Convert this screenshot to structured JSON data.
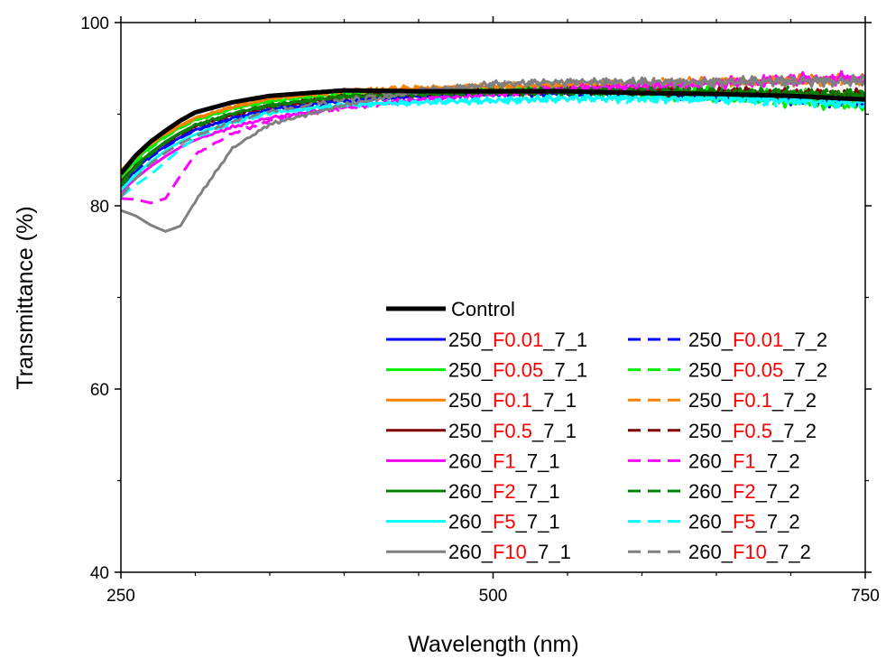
{
  "chart_data": {
    "type": "line",
    "title": "",
    "xlabel": "Wavelength (nm)",
    "ylabel": "Transmittance (%)",
    "xlim": [
      250,
      750
    ],
    "ylim": [
      40,
      100
    ],
    "x_ticks": [
      "250",
      "500",
      "750"
    ],
    "y_ticks": [
      "40",
      "60",
      "80",
      "100"
    ],
    "grid": false,
    "legend_position": "bottom-right",
    "x": [
      250,
      260,
      270,
      280,
      290,
      300,
      325,
      350,
      400,
      450,
      500,
      550,
      600,
      650,
      700,
      750
    ],
    "series": [
      {
        "name": "Control",
        "parts": [
          "Control"
        ],
        "color": "#000000",
        "dash": "solid",
        "width": 5,
        "values": [
          83.5,
          85.5,
          87.0,
          88.2,
          89.3,
          90.2,
          91.3,
          92.0,
          92.6,
          92.5,
          92.5,
          92.5,
          92.3,
          92.2,
          92.0,
          91.6
        ]
      },
      {
        "name": "250_F0.01_7_1",
        "parts": [
          "250_",
          "F0.01",
          "_7_1"
        ],
        "color": "#0000ff",
        "dash": "solid",
        "width": 3,
        "values": [
          82.0,
          84.0,
          85.5,
          86.5,
          87.5,
          88.3,
          89.6,
          90.5,
          91.5,
          92.0,
          92.2,
          92.3,
          92.2,
          92.0,
          91.6,
          91.2
        ]
      },
      {
        "name": "250_F0.01_7_2",
        "parts": [
          "250_",
          "F0.01",
          "_7_2"
        ],
        "color": "#0000ff",
        "dash": "dash",
        "width": 3,
        "values": [
          81.8,
          83.7,
          85.3,
          86.4,
          87.4,
          88.2,
          89.5,
          90.4,
          91.5,
          92.0,
          92.3,
          92.5,
          92.4,
          92.1,
          91.7,
          91.3
        ]
      },
      {
        "name": "250_F0.05_7_1",
        "parts": [
          "250_",
          "F0.05",
          "_7_1"
        ],
        "color": "#00ee00",
        "dash": "solid",
        "width": 3,
        "values": [
          83.0,
          85.0,
          86.5,
          87.6,
          88.6,
          89.4,
          90.6,
          91.4,
          92.2,
          92.5,
          92.7,
          92.8,
          92.7,
          92.5,
          92.2,
          91.8
        ]
      },
      {
        "name": "250_F0.05_7_2",
        "parts": [
          "250_",
          "F0.05",
          "_7_2"
        ],
        "color": "#00ee00",
        "dash": "dash",
        "width": 3,
        "values": [
          82.7,
          84.7,
          86.3,
          87.5,
          88.5,
          89.3,
          90.6,
          91.5,
          92.3,
          92.5,
          92.6,
          92.4,
          92.1,
          91.8,
          91.3,
          90.8
        ]
      },
      {
        "name": "250_F0.1_7_1",
        "parts": [
          "250_",
          "F0.1",
          "_7_1"
        ],
        "color": "#ff8000",
        "dash": "solid",
        "width": 3,
        "values": [
          83.8,
          85.6,
          86.9,
          87.9,
          88.8,
          89.6,
          90.8,
          91.7,
          92.5,
          92.8,
          93.0,
          93.2,
          93.3,
          93.5,
          93.6,
          93.7
        ]
      },
      {
        "name": "250_F0.1_7_2",
        "parts": [
          "250_",
          "F0.1",
          "_7_2"
        ],
        "color": "#ff8000",
        "dash": "dash",
        "width": 3,
        "values": [
          83.5,
          85.3,
          86.7,
          87.8,
          88.7,
          89.5,
          90.8,
          91.7,
          92.6,
          92.9,
          93.1,
          93.3,
          93.4,
          93.6,
          93.7,
          93.9
        ]
      },
      {
        "name": "250_F0.5_7_1",
        "parts": [
          "250_",
          "F0.5",
          "_7_1"
        ],
        "color": "#800000",
        "dash": "solid",
        "width": 3,
        "values": [
          82.6,
          84.4,
          85.8,
          86.9,
          87.9,
          88.7,
          90.0,
          90.9,
          91.9,
          92.3,
          92.5,
          92.5,
          92.5,
          92.4,
          92.2,
          92.0
        ]
      },
      {
        "name": "250_F0.5_7_2",
        "parts": [
          "250_",
          "F0.5",
          "_7_2"
        ],
        "color": "#800000",
        "dash": "dash",
        "width": 3,
        "values": [
          82.3,
          84.2,
          85.7,
          86.8,
          87.8,
          88.6,
          89.9,
          90.8,
          91.9,
          92.3,
          92.5,
          92.6,
          92.6,
          92.5,
          92.3,
          92.1
        ]
      },
      {
        "name": "260_F1_7_1",
        "parts": [
          "260_",
          "F1",
          "_7_1"
        ],
        "color": "#ff00ff",
        "dash": "solid",
        "width": 3,
        "values": [
          81.5,
          83.0,
          84.3,
          85.4,
          86.4,
          87.2,
          88.6,
          89.6,
          90.8,
          91.6,
          92.2,
          92.7,
          93.0,
          93.3,
          93.6,
          93.9
        ]
      },
      {
        "name": "260_F1_7_2",
        "parts": [
          "260_",
          "F1",
          "_7_2"
        ],
        "color": "#ff00ff",
        "dash": "dash",
        "width": 3,
        "values": [
          80.8,
          80.7,
          80.3,
          80.8,
          83.3,
          85.6,
          87.9,
          89.3,
          90.7,
          91.6,
          92.3,
          92.8,
          93.2,
          93.6,
          93.9,
          94.1
        ]
      },
      {
        "name": "260_F2_7_1",
        "parts": [
          "260_",
          "F2",
          "_7_1"
        ],
        "color": "#008000",
        "dash": "solid",
        "width": 3,
        "values": [
          82.4,
          84.3,
          85.8,
          87.0,
          88.0,
          88.8,
          90.1,
          91.0,
          91.9,
          92.2,
          92.4,
          92.4,
          92.4,
          92.3,
          92.2,
          92.0
        ]
      },
      {
        "name": "260_F2_7_2",
        "parts": [
          "260_",
          "F2",
          "_7_2"
        ],
        "color": "#008000",
        "dash": "dash",
        "width": 3,
        "values": [
          82.1,
          84.1,
          85.6,
          86.9,
          87.9,
          88.7,
          90.0,
          90.9,
          91.9,
          92.3,
          92.5,
          92.6,
          92.6,
          92.5,
          92.4,
          92.2
        ]
      },
      {
        "name": "260_F5_7_1",
        "parts": [
          "260_",
          "F5",
          "_7_1"
        ],
        "color": "#00ffff",
        "dash": "solid",
        "width": 3,
        "values": [
          81.7,
          83.4,
          84.8,
          86.0,
          87.0,
          87.8,
          89.2,
          90.2,
          91.0,
          91.3,
          91.5,
          91.7,
          91.7,
          91.7,
          91.5,
          91.2
        ]
      },
      {
        "name": "260_F5_7_2",
        "parts": [
          "260_",
          "F5",
          "_7_2"
        ],
        "color": "#00ffff",
        "dash": "dash",
        "width": 3,
        "values": [
          81.0,
          82.3,
          83.4,
          84.8,
          86.2,
          87.4,
          89.0,
          90.1,
          91.0,
          91.3,
          91.5,
          91.7,
          91.7,
          91.7,
          91.4,
          91.0
        ]
      },
      {
        "name": "260_F10_7_1",
        "parts": [
          "260_",
          "F10",
          "_7_1"
        ],
        "color": "#808080",
        "dash": "solid",
        "width": 3,
        "values": [
          79.5,
          78.9,
          77.9,
          77.2,
          77.8,
          80.5,
          86.3,
          88.9,
          91.0,
          92.5,
          93.3,
          93.5,
          93.5,
          93.5,
          93.6,
          93.6
        ]
      },
      {
        "name": "260_F10_7_2",
        "parts": [
          "260_",
          "F10",
          "_7_2"
        ],
        "color": "#808080",
        "dash": "dash",
        "width": 3,
        "values": [
          81.0,
          83.0,
          84.6,
          85.8,
          86.8,
          87.6,
          89.2,
          90.3,
          91.6,
          92.6,
          93.2,
          93.5,
          93.5,
          93.5,
          93.6,
          93.7
        ]
      }
    ]
  }
}
